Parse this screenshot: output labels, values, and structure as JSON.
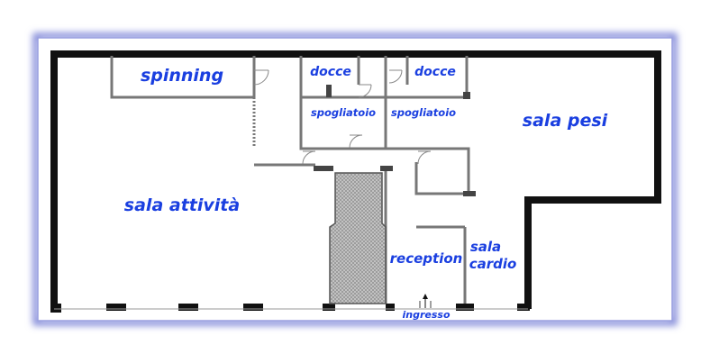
{
  "plan": {
    "colors": {
      "wall": "#111111",
      "partition": "#777777",
      "label": "#1a3fe0",
      "frame_glow": "#7f86d8",
      "hatch": "#8c8c8c",
      "background": "#ffffff"
    },
    "rooms": {
      "spinning": "spinning",
      "docce_left": "docce",
      "docce_right": "docce",
      "spogliatoio_left": "spogliatoio",
      "spogliatoio_right": "spogliatoio",
      "sala_pesi": "sala pesi",
      "sala_attivita": "sala attività",
      "reception": "reception",
      "sala_cardio_line1": "sala",
      "sala_cardio_line2": "cardio",
      "ingresso": "ingresso"
    },
    "icons": {
      "entrance": "arrow-up-icon"
    }
  }
}
